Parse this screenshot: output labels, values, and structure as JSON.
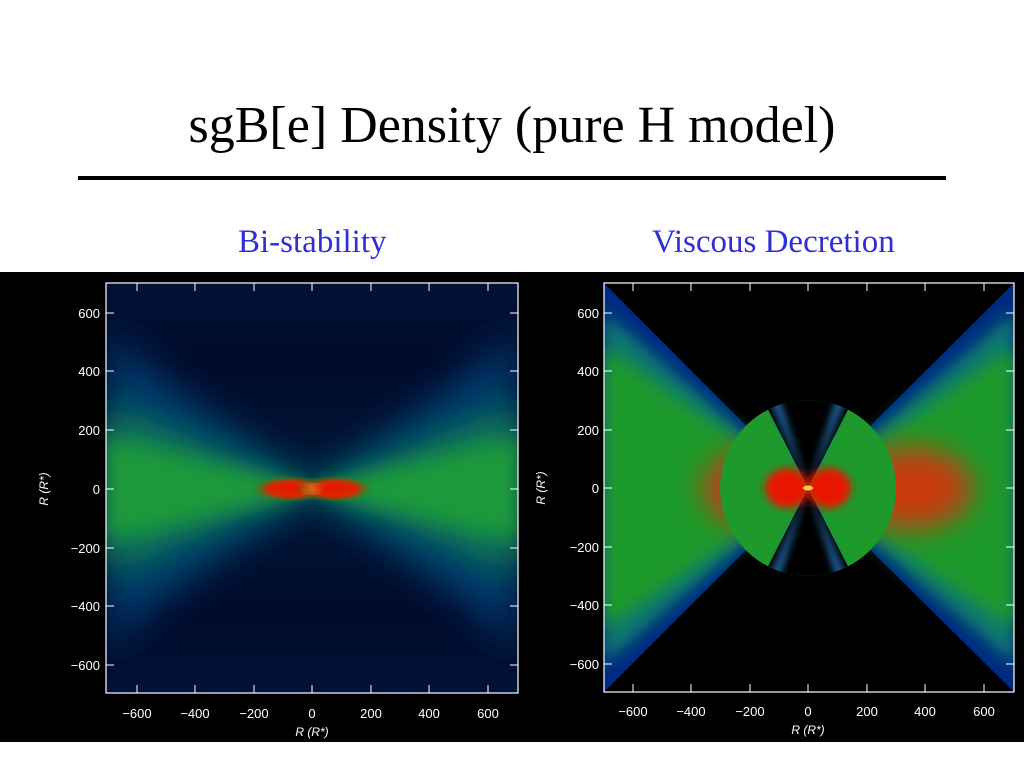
{
  "slide": {
    "title": "sgB[e] Density (pure H model)"
  },
  "panels": [
    {
      "label": "Bi-stability",
      "x_ticks": [
        "−600",
        "−400",
        "−200",
        "0",
        "200",
        "400",
        "600"
      ],
      "y_ticks": [
        "600",
        "400",
        "200",
        "0",
        "−200",
        "−400",
        "−600"
      ],
      "xlabel": "R (R*)",
      "ylabel": "R (R*)",
      "ylabel_parts": {
        "R": "R",
        "sub": "*"
      }
    },
    {
      "label": "Viscous Decretion",
      "x_ticks": [
        "−600",
        "−400",
        "−200",
        "0",
        "200",
        "400",
        "600"
      ],
      "y_ticks": [
        "600",
        "400",
        "200",
        "0",
        "−200",
        "−400",
        "−600"
      ],
      "xlabel": "R (R*)",
      "ylabel": "R (R*)"
    }
  ],
  "colors": {
    "label": "#2f2fd8",
    "density_high": "#e01000",
    "density_mid": "#1a9a2a",
    "density_low": "#001040",
    "background": "#000000"
  }
}
